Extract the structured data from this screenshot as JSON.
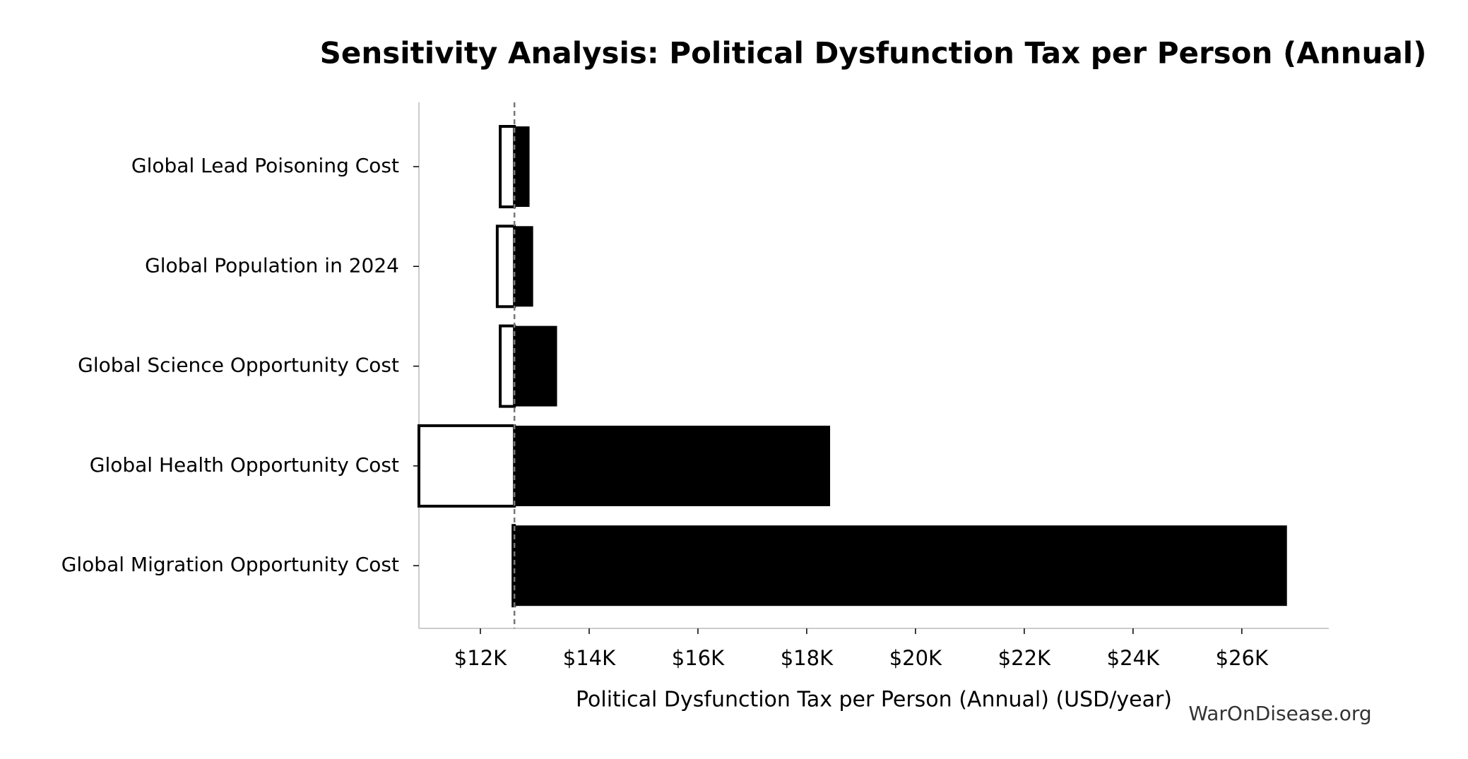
{
  "chart_data": {
    "type": "tornado",
    "title": "Sensitivity Analysis: Political Dysfunction Tax per Person (Annual)",
    "xlabel": "Political Dysfunction Tax per Person (Annual) (USD/year)",
    "watermark": "WarOnDisease.org",
    "categories": [
      "Global Lead Poisoning Cost",
      "Global Population in 2024",
      "Global Science Opportunity Cost",
      "Global Health Opportunity Cost",
      "Global Migration Opportunity Cost"
    ],
    "baseline": 12626,
    "low_values": [
      12365,
      12310,
      12365,
      10870,
      12600
    ],
    "high_values": [
      12904,
      12970,
      13410,
      18430,
      26830
    ],
    "low_color": "#ffffff",
    "high_color": "#000000",
    "xlim": [
      10870,
      27600
    ],
    "xticks": [
      {
        "value": 12000,
        "label": "$12K"
      },
      {
        "value": 14000,
        "label": "$14K"
      },
      {
        "value": 16000,
        "label": "$16K"
      },
      {
        "value": 18000,
        "label": "$18K"
      },
      {
        "value": 20000,
        "label": "$20K"
      },
      {
        "value": 22000,
        "label": "$22K"
      },
      {
        "value": 24000,
        "label": "$24K"
      },
      {
        "value": 26000,
        "label": "$26K"
      }
    ]
  }
}
